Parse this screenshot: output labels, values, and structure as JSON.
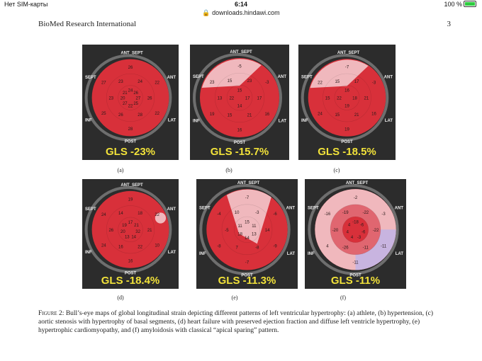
{
  "status": {
    "carrier": "Нет SIM-карты",
    "time": "6:14",
    "battery": "100 %"
  },
  "browser": {
    "url": "downloads.hindawi.com"
  },
  "page": {
    "journal": "BioMed Research International",
    "number": "3"
  },
  "panels": [
    {
      "id": "a",
      "label": "(a)",
      "gls": "GLS -23%",
      "segments": [
        "26",
        "22",
        "22",
        "28",
        "25",
        "27",
        "24",
        "26",
        "28",
        "26",
        "23",
        "23",
        "24",
        "26",
        "27",
        "25",
        "22",
        "27",
        "20",
        "21"
      ]
    },
    {
      "id": "b",
      "label": "(b)",
      "gls": "GLS -15.7%",
      "segments": [
        "-5",
        "-3",
        "16",
        "16",
        "19",
        "23",
        "23",
        "17",
        "21",
        "15",
        "13",
        "15",
        "15",
        "17",
        "14",
        "22"
      ]
    },
    {
      "id": "c",
      "label": "(c)",
      "gls": "GLS -18.5%",
      "segments": [
        "-7",
        "-3",
        "16",
        "19",
        "24",
        "22",
        "17",
        "21",
        "21",
        "15",
        "15",
        "15",
        "16",
        "18",
        "19",
        "22"
      ]
    },
    {
      "id": "d",
      "label": "(d)",
      "gls": "GLS -18.4%",
      "segments": [
        "19",
        "22",
        "10",
        "16",
        "24",
        "24",
        "18",
        "21",
        "22",
        "16",
        "26",
        "14",
        "17",
        "21",
        "32",
        "14",
        "13",
        "20",
        "19"
      ]
    },
    {
      "id": "e",
      "label": "(e)",
      "gls": "GLS -11.3%",
      "segments": [
        "-7",
        "-6",
        "-9",
        "-7",
        "-8",
        "-4",
        "-3",
        "14",
        "-8",
        "7",
        "-5",
        "10",
        "15",
        "11",
        "13",
        "14",
        "18",
        "11"
      ]
    },
    {
      "id": "f",
      "label": "(f)",
      "gls": "GLS -11%",
      "segments": [
        "-2",
        "-3",
        "-11",
        "-11",
        "4",
        "-16",
        "-22",
        "-22",
        "-11",
        "-26",
        "-20",
        "-19",
        "-18",
        "-6",
        "-6",
        "-3",
        "4",
        "4",
        "4"
      ]
    }
  ],
  "wall_labels": {
    "top": "ANT_SEPT",
    "left": "SEPT",
    "right": "ANT",
    "lower_left": "INF",
    "lower_right": "LAT",
    "bottom": "POST"
  },
  "caption": {
    "head": "Figure 2:",
    "text": "Bull’s-eye maps of global longitudinal strain depicting different patterns of left ventricular hypertrophy: (a) athlete, (b) hypertension, (c) aortic stenosis with hypertrophy of basal segments, (d) heart failure with preserved ejection fraction and diffuse left ventricle hypertrophy, (e) hypertrophic cardiomyopathy, and (f) amyloidosis with classical “apical sparing” pattern."
  },
  "colors": {
    "panel_bg": "#2c2c2c",
    "myocardium": "#d8303a",
    "gls_text": "#f2e23a",
    "ring": "#6e6e6e",
    "pale": "#f0b8bd",
    "lilac": "#c8b4e0"
  }
}
